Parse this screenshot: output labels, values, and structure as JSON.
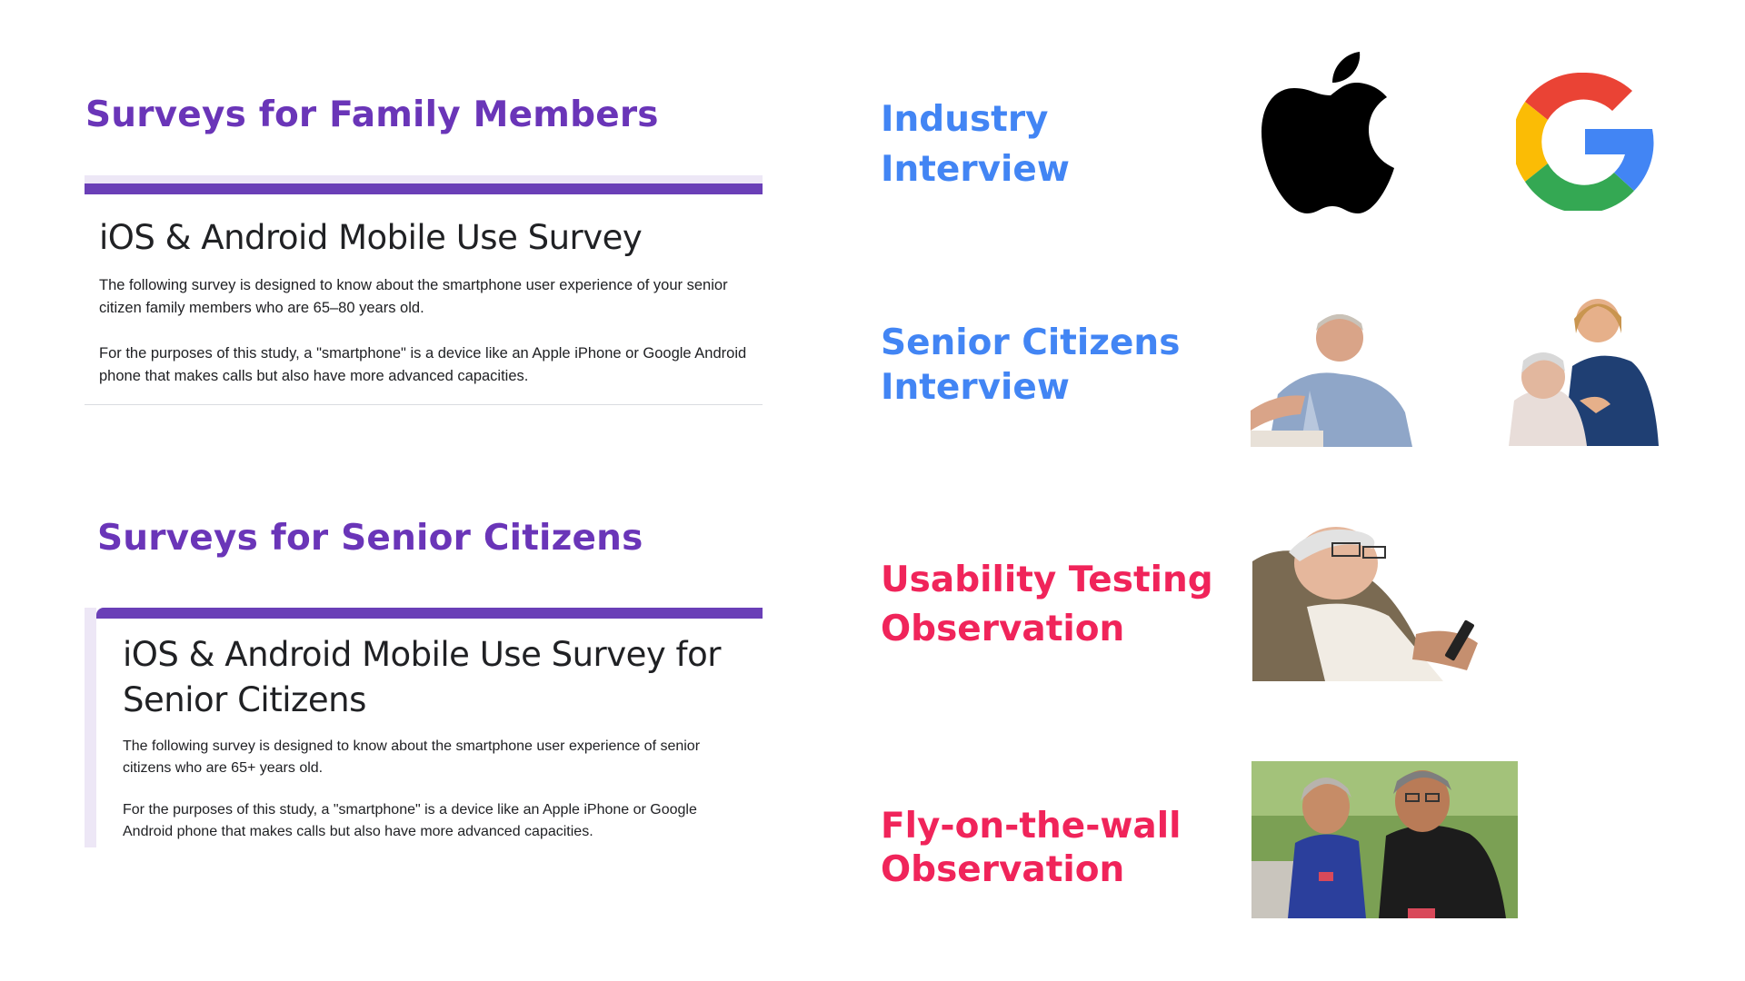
{
  "left": {
    "family_heading": "Surveys for Family Members",
    "family_form": {
      "title": "iOS & Android Mobile Use Survey",
      "para1": "The following survey is designed to know about the smartphone user experience of your senior citizen family members who are 65–80 years old.",
      "para2": "For the purposes of this study, a \"smartphone\" is a device like an Apple iPhone or Google Android phone that makes calls but also have more advanced capacities."
    },
    "senior_heading": "Surveys for Senior Citizens",
    "senior_form": {
      "title_line1": "iOS & Android Mobile Use Survey for",
      "title_line2": "Senior Citizens",
      "para1": "The following survey is designed to know about the smartphone user experience of senior citizens who are 65+ years old.",
      "para2": "For the purposes of this study, a \"smartphone\" is a device like an Apple iPhone or Google Android phone that makes calls but also have more advanced capacities."
    }
  },
  "right": {
    "industry": {
      "line1": "Industry",
      "line2": "Interview"
    },
    "seniors": {
      "line1": "Senior Citizens",
      "line2": "Interview"
    },
    "usability": {
      "line1": "Usability Testing",
      "line2": "Observation"
    },
    "fly": {
      "line1": "Fly-on-the-wall",
      "line2": "Observation"
    }
  },
  "icons": [
    "apple-logo-icon",
    "google-g-logo-icon"
  ],
  "colors": {
    "purple_heading": "#6a35b8",
    "form_accent": "#6a3fb7",
    "blue_heading": "#4285f4",
    "red_heading": "#f0245a"
  }
}
